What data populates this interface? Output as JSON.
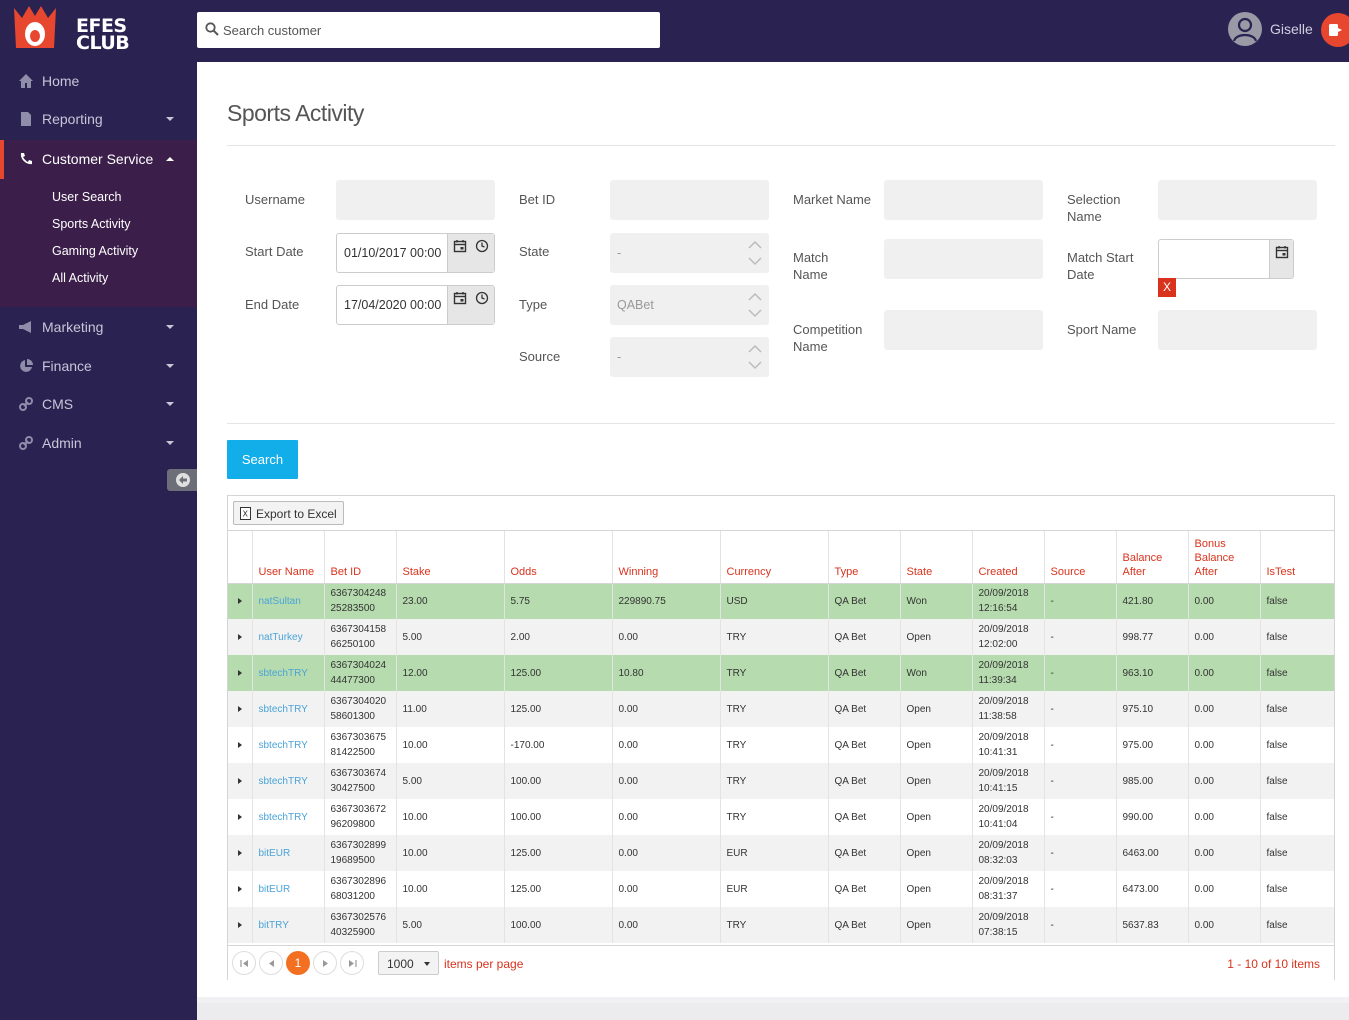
{
  "brand": {
    "line1": "EFES",
    "line2": "CLUB"
  },
  "search": {
    "placeholder": "Search customer"
  },
  "user": {
    "name": "Giselle"
  },
  "sidebar": {
    "items": [
      {
        "label": "Home"
      },
      {
        "label": "Reporting"
      },
      {
        "label": "Customer Service"
      },
      {
        "label": "Marketing"
      },
      {
        "label": "Finance"
      },
      {
        "label": "CMS"
      },
      {
        "label": "Admin"
      }
    ],
    "sub_items": [
      {
        "label": "User Search"
      },
      {
        "label": "Sports Activity"
      },
      {
        "label": "Gaming Activity"
      },
      {
        "label": "All Activity"
      }
    ]
  },
  "page": {
    "title": "Sports Activity"
  },
  "filters": {
    "username": "Username",
    "start_date": "Start Date",
    "start_date_value": "01/10/2017 00:00",
    "end_date": "End Date",
    "end_date_value": "17/04/2020 00:00",
    "bet_id": "Bet ID",
    "state": "State",
    "state_value": "-",
    "type": "Type",
    "type_value": "QABet",
    "source": "Source",
    "source_value": "-",
    "market_name": "Market Name",
    "match_name": "Match Name",
    "competition_name": "Competition Name",
    "selection_name": "Selection Name",
    "match_start_date": "Match Start Date",
    "sport_name": "Sport Name",
    "clear": "X"
  },
  "search_button": "Search",
  "grid": {
    "export_label": "Export to Excel",
    "columns": [
      "User Name",
      "Bet ID",
      "Stake",
      "Odds",
      "Winning",
      "Currency",
      "Type",
      "State",
      "Created",
      "Source",
      "Balance After",
      "Bonus Balance After",
      "IsTest"
    ],
    "rows": [
      {
        "user": "natSultan",
        "bet": "636730424825283500",
        "stake": "23.00",
        "odds": "5.75",
        "win": "229890.75",
        "cur": "USD",
        "type": "QA Bet",
        "state": "Won",
        "created_d": "20/09/2018",
        "created_t": "12:16:54",
        "source": "-",
        "bal": "421.80",
        "bonus": "0.00",
        "test": "false"
      },
      {
        "user": "natTurkey",
        "bet": "636730415866250100",
        "stake": "5.00",
        "odds": "2.00",
        "win": "0.00",
        "cur": "TRY",
        "type": "QA Bet",
        "state": "Open",
        "created_d": "20/09/2018",
        "created_t": "12:02:00",
        "source": "-",
        "bal": "998.77",
        "bonus": "0.00",
        "test": "false"
      },
      {
        "user": "sbtechTRY",
        "bet": "636730402444477300",
        "stake": "12.00",
        "odds": "125.00",
        "win": "10.80",
        "cur": "TRY",
        "type": "QA Bet",
        "state": "Won",
        "created_d": "20/09/2018",
        "created_t": "11:39:34",
        "source": "-",
        "bal": "963.10",
        "bonus": "0.00",
        "test": "false"
      },
      {
        "user": "sbtechTRY",
        "bet": "636730402058601300",
        "stake": "11.00",
        "odds": "125.00",
        "win": "0.00",
        "cur": "TRY",
        "type": "QA Bet",
        "state": "Open",
        "created_d": "20/09/2018",
        "created_t": "11:38:58",
        "source": "-",
        "bal": "975.10",
        "bonus": "0.00",
        "test": "false"
      },
      {
        "user": "sbtechTRY",
        "bet": "636730367581422500",
        "stake": "10.00",
        "odds": "-170.00",
        "win": "0.00",
        "cur": "TRY",
        "type": "QA Bet",
        "state": "Open",
        "created_d": "20/09/2018",
        "created_t": "10:41:31",
        "source": "-",
        "bal": "975.00",
        "bonus": "0.00",
        "test": "false"
      },
      {
        "user": "sbtechTRY",
        "bet": "636730367430427500",
        "stake": "5.00",
        "odds": "100.00",
        "win": "0.00",
        "cur": "TRY",
        "type": "QA Bet",
        "state": "Open",
        "created_d": "20/09/2018",
        "created_t": "10:41:15",
        "source": "-",
        "bal": "985.00",
        "bonus": "0.00",
        "test": "false"
      },
      {
        "user": "sbtechTRY",
        "bet": "636730367296209800",
        "stake": "10.00",
        "odds": "100.00",
        "win": "0.00",
        "cur": "TRY",
        "type": "QA Bet",
        "state": "Open",
        "created_d": "20/09/2018",
        "created_t": "10:41:04",
        "source": "-",
        "bal": "990.00",
        "bonus": "0.00",
        "test": "false"
      },
      {
        "user": "bitEUR",
        "bet": "636730289919689500",
        "stake": "10.00",
        "odds": "125.00",
        "win": "0.00",
        "cur": "EUR",
        "type": "QA Bet",
        "state": "Open",
        "created_d": "20/09/2018",
        "created_t": "08:32:03",
        "source": "-",
        "bal": "6463.00",
        "bonus": "0.00",
        "test": "false"
      },
      {
        "user": "bitEUR",
        "bet": "636730289668031200",
        "stake": "10.00",
        "odds": "125.00",
        "win": "0.00",
        "cur": "EUR",
        "type": "QA Bet",
        "state": "Open",
        "created_d": "20/09/2018",
        "created_t": "08:31:37",
        "source": "-",
        "bal": "6473.00",
        "bonus": "0.00",
        "test": "false"
      },
      {
        "user": "bitTRY",
        "bet": "636730257640325900",
        "stake": "5.00",
        "odds": "100.00",
        "win": "0.00",
        "cur": "TRY",
        "type": "QA Bet",
        "state": "Open",
        "created_d": "20/09/2018",
        "created_t": "07:38:15",
        "source": "-",
        "bal": "5637.83",
        "bonus": "0.00",
        "test": "false"
      }
    ]
  },
  "pager": {
    "current": "1",
    "page_size": "1000",
    "per_page_label": "items per page",
    "info": "1 - 10 of 10 items"
  },
  "colors": {
    "nav_bg": "#2a2251",
    "accent": "#e8472f",
    "search_btn": "#12aee9",
    "won_row": "#b6dbae",
    "link": "#4aa3d8",
    "header_text": "#d9331e"
  },
  "icons": [
    "home-icon",
    "file-icon",
    "phone-icon",
    "bullhorn-icon",
    "pie-chart-icon",
    "link-icon",
    "link-icon",
    "search-icon",
    "user-icon",
    "logout-icon",
    "calendar-icon",
    "clock-icon",
    "excel-icon"
  ]
}
